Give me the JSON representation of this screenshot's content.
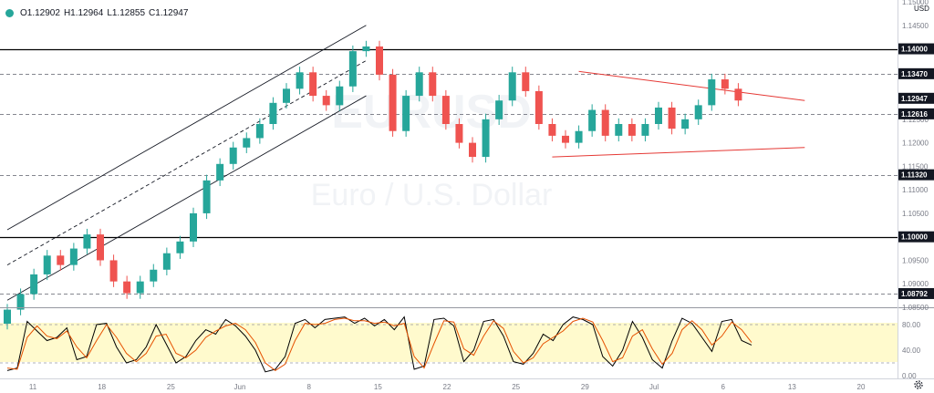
{
  "header": {
    "open": "O1.12902",
    "high": "H1.12964",
    "low": "L1.12855",
    "close": "C1.12947",
    "currency": "USD",
    "watermark_symbol": "EURUSD",
    "watermark_name": "Euro / U.S. Dollar"
  },
  "icons": {
    "status": "status-dot-icon",
    "settings": "gear-icon"
  },
  "colors": {
    "bull": "#26a69a",
    "bear": "#ef5350",
    "trendline": "#e53935",
    "osc_band": "#fffacd",
    "price_tag": "#131722"
  },
  "chart_data": [
    {
      "type": "candlestick",
      "title": "",
      "ylim": [
        1.085,
        1.15
      ],
      "y_ticks": [
        "1.15000",
        "1.14500",
        "1.14000",
        "1.13500",
        "1.13000",
        "1.12500",
        "1.12000",
        "1.11500",
        "1.11000",
        "1.10500",
        "1.10000",
        "1.09500",
        "1.09000",
        "1.08500"
      ],
      "x_ticks": [
        "11",
        "18",
        "25",
        "Jun",
        "8",
        "15",
        "22",
        "25",
        "29",
        "Jul",
        "6",
        "13",
        "20"
      ],
      "price_labels": [
        {
          "text": "1.14000",
          "value": 1.14
        },
        {
          "text": "1.13470",
          "value": 1.1347
        },
        {
          "text": "1.12947",
          "value": 1.12947
        },
        {
          "text": "1.12616",
          "value": 1.12616
        },
        {
          "text": "1.11320",
          "value": 1.1132
        },
        {
          "text": "1.10000",
          "value": 1.1
        },
        {
          "text": "1.08792",
          "value": 1.08792
        }
      ],
      "levels": [
        {
          "value": 1.14,
          "style": "solid"
        },
        {
          "value": 1.1347,
          "style": "dashed"
        },
        {
          "value": 1.12616,
          "style": "dashed"
        },
        {
          "value": 1.1132,
          "style": "dashed"
        },
        {
          "value": 1.1,
          "style": "solid"
        },
        {
          "value": 1.08792,
          "style": "dashed"
        }
      ],
      "pivots": [
        1.0815,
        1.0845,
        1.0878,
        1.092,
        1.096,
        1.094,
        1.0975,
        1.1005,
        1.095,
        1.0905,
        1.088,
        1.0905,
        1.093,
        1.0965,
        1.099,
        1.105,
        1.112,
        1.1155,
        1.119,
        1.121,
        1.124,
        1.1285,
        1.1315,
        1.135,
        1.13,
        1.128,
        1.132,
        1.1395,
        1.1405,
        1.1345,
        1.1225,
        1.13,
        1.135,
        1.13,
        1.124,
        1.12,
        1.117,
        1.125,
        1.129,
        1.135,
        1.131,
        1.124,
        1.1215,
        1.12,
        1.1225,
        1.127,
        1.1215,
        1.124,
        1.1215,
        1.124,
        1.1275,
        1.123,
        1.125,
        1.128,
        1.1335,
        1.1315,
        1.129
      ],
      "channel": {
        "lower_start": [
          18.5,
          1.0865
        ],
        "lower_end": [
          45.5,
          1.13
        ],
        "offset": 0.015,
        "mid": true
      },
      "triangle": {
        "upper": [
          [
            43.0,
            1.1352
          ],
          [
            60.0,
            1.129
          ]
        ],
        "lower": [
          [
            41.0,
            1.117
          ],
          [
            60.0,
            1.119
          ]
        ]
      }
    },
    {
      "type": "line",
      "name_text": "",
      "ylim": [
        0,
        100
      ],
      "y_ticks": [
        "80.00",
        "40.00",
        "0.00"
      ],
      "band": [
        20,
        80
      ],
      "series": [
        {
          "color": "#000000",
          "values": [
            8,
            12,
            85,
            70,
            55,
            60,
            75,
            25,
            30,
            80,
            82,
            45,
            20,
            25,
            45,
            80,
            50,
            20,
            30,
            55,
            72,
            65,
            88,
            78,
            62,
            40,
            6,
            10,
            30,
            82,
            88,
            75,
            88,
            90,
            92,
            82,
            90,
            78,
            88,
            72,
            92,
            10,
            15,
            88,
            90,
            78,
            22,
            40,
            85,
            88,
            62,
            22,
            18,
            35,
            65,
            55,
            80,
            92,
            88,
            80,
            30,
            15,
            40,
            85,
            60,
            25,
            12,
            55,
            90,
            82,
            60,
            38,
            85,
            88,
            55,
            48
          ]
        },
        {
          "color": "#e65100",
          "values": [
            12,
            10,
            60,
            78,
            62,
            58,
            70,
            45,
            28,
            55,
            80,
            60,
            35,
            22,
            35,
            62,
            65,
            35,
            28,
            40,
            60,
            70,
            78,
            82,
            72,
            52,
            20,
            8,
            18,
            55,
            82,
            80,
            82,
            88,
            90,
            86,
            86,
            82,
            84,
            78,
            82,
            30,
            12,
            50,
            86,
            84,
            42,
            32,
            62,
            86,
            74,
            38,
            20,
            28,
            50,
            60,
            70,
            85,
            90,
            84,
            55,
            22,
            28,
            62,
            72,
            42,
            18,
            35,
            72,
            86,
            72,
            48,
            62,
            84,
            72,
            52
          ]
        }
      ]
    }
  ]
}
